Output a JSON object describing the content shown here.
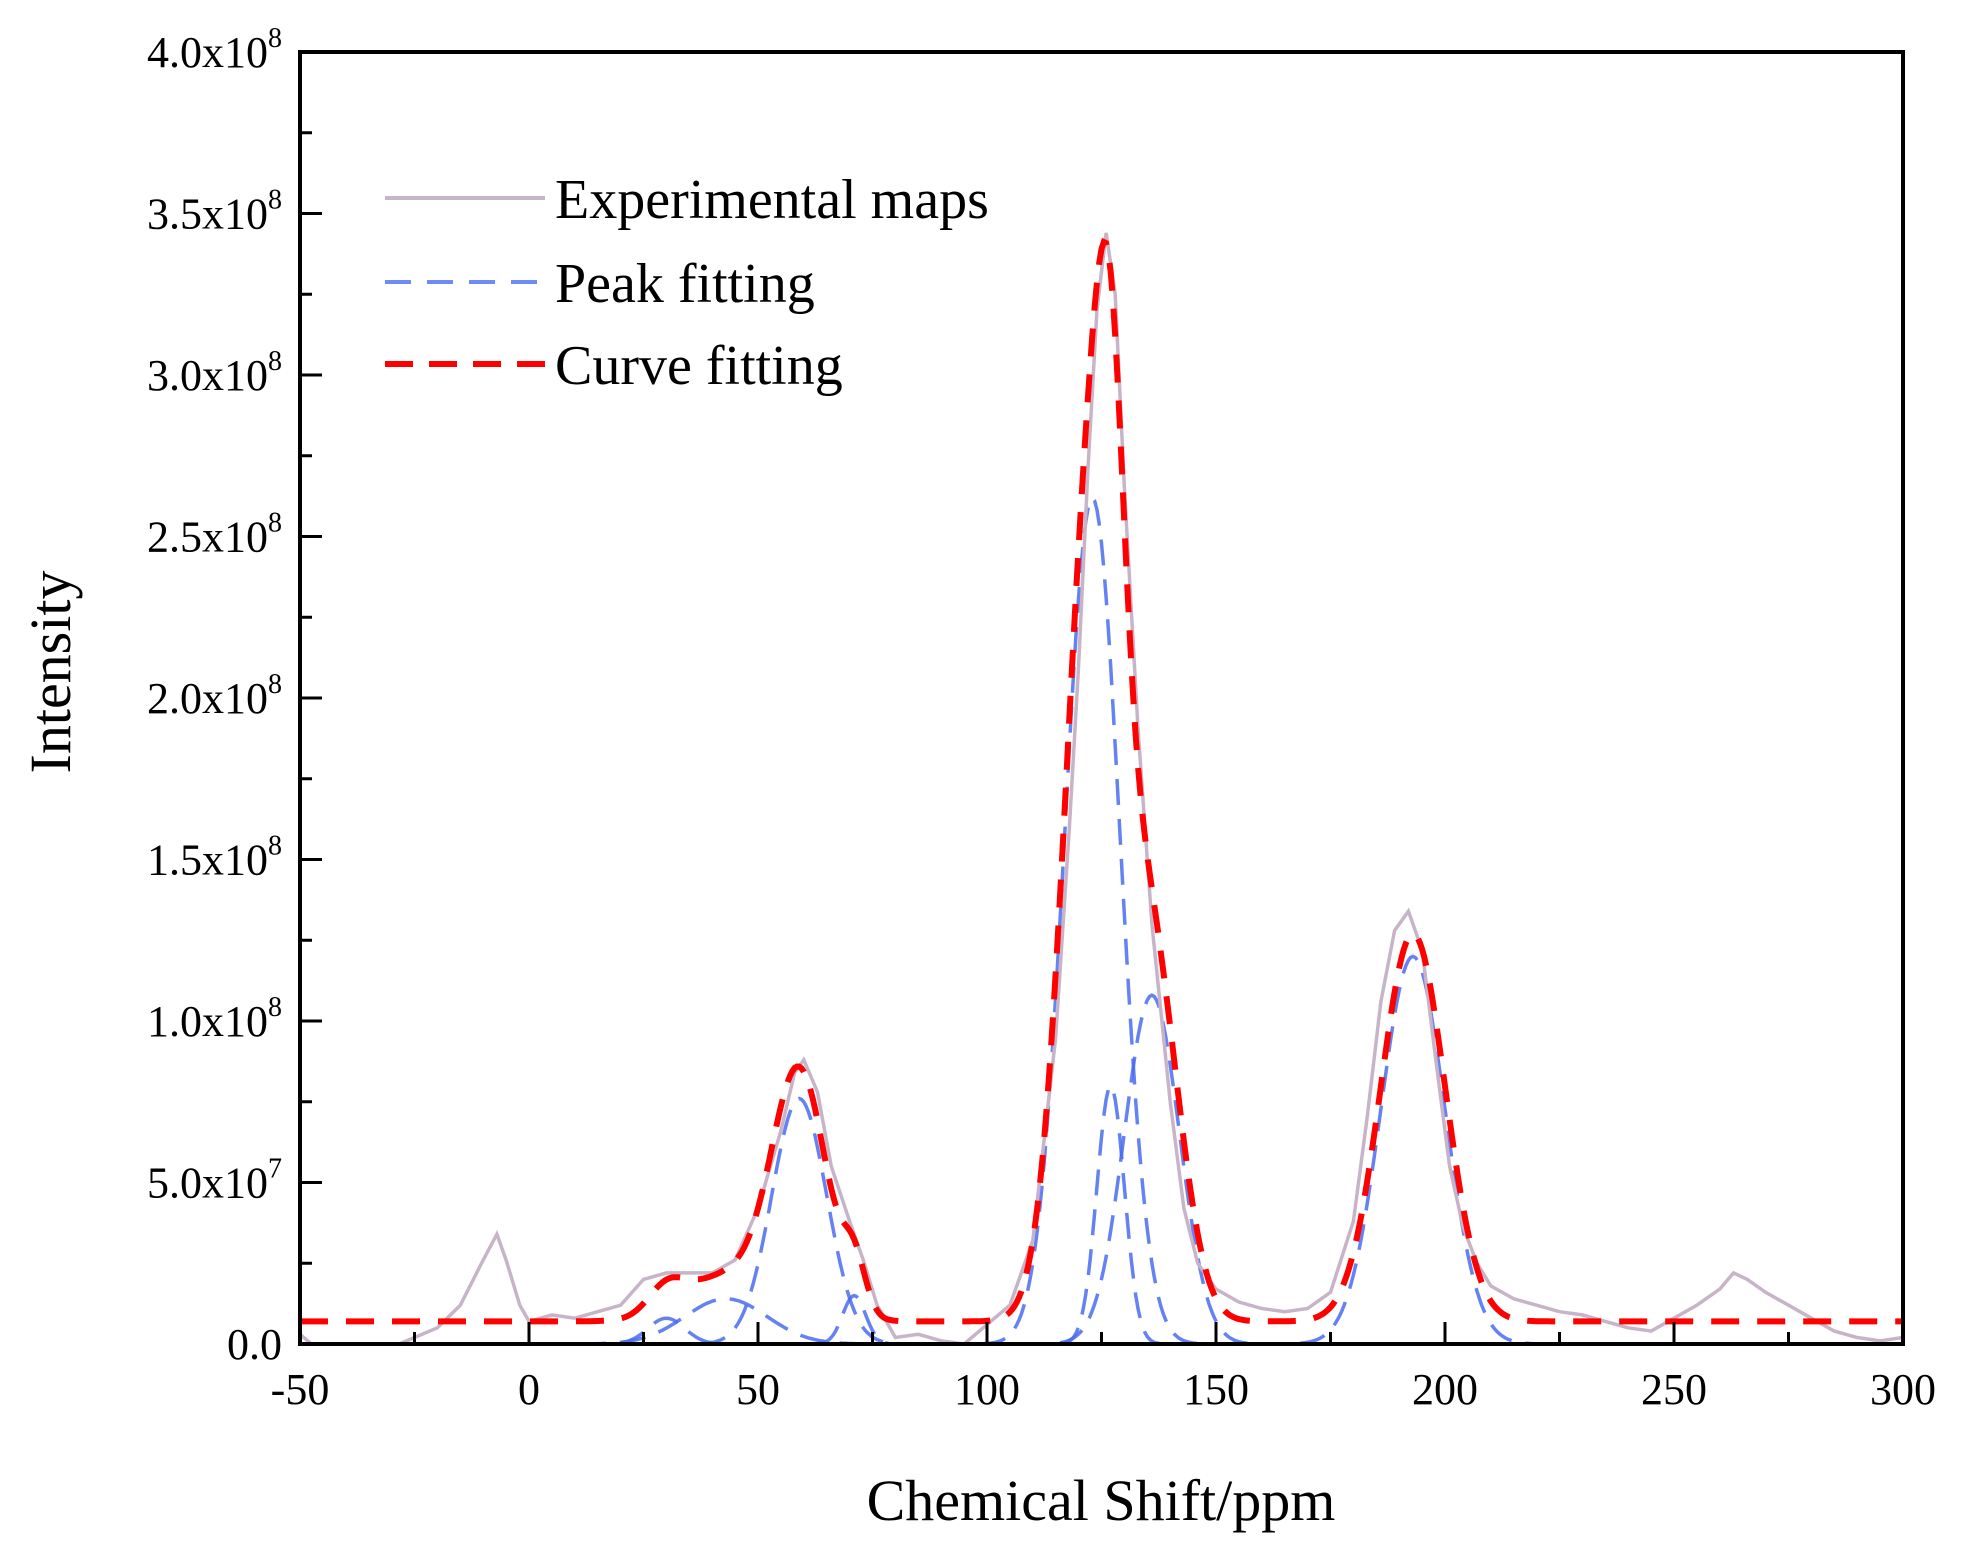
{
  "chart_data": {
    "type": "line",
    "xlabel": "Chemical Shift/ppm",
    "ylabel": "Intensity",
    "xlim": [
      -50,
      300
    ],
    "ylim": [
      0,
      400000000
    ],
    "x_ticks": [
      -50,
      0,
      50,
      100,
      150,
      200,
      250,
      300
    ],
    "x_tick_labels": [
      "-50",
      "0",
      "50",
      "100",
      "150",
      "200",
      "250",
      "300"
    ],
    "y_ticks": [
      0,
      50000000,
      100000000,
      150000000,
      200000000,
      250000000,
      300000000,
      350000000,
      400000000
    ],
    "y_tick_labels": [
      {
        "mant": "0.0",
        "exp": ""
      },
      {
        "mant": "5.0x10",
        "exp": "7"
      },
      {
        "mant": "1.0x10",
        "exp": "8"
      },
      {
        "mant": "1.5x10",
        "exp": "8"
      },
      {
        "mant": "2.0x10",
        "exp": "8"
      },
      {
        "mant": "2.5x10",
        "exp": "8"
      },
      {
        "mant": "3.0x10",
        "exp": "8"
      },
      {
        "mant": "3.5x10",
        "exp": "8"
      },
      {
        "mant": "4.0x10",
        "exp": "8"
      }
    ],
    "grid": false,
    "legend_position": "top-left",
    "series": [
      {
        "name": "Experimental maps",
        "style": "solid",
        "color": "#c8b4c8",
        "x": [
          -50,
          -45,
          -40,
          -35,
          -30,
          -25,
          -20,
          -15,
          -10,
          -7,
          -5,
          -2,
          0,
          5,
          10,
          15,
          20,
          25,
          30,
          35,
          40,
          45,
          50,
          55,
          58,
          60,
          63,
          66,
          70,
          73,
          76,
          80,
          85,
          90,
          95,
          100,
          105,
          110,
          115,
          118,
          120,
          122,
          124,
          126,
          128,
          130,
          133,
          136,
          140,
          143,
          146,
          150,
          155,
          160,
          165,
          170,
          175,
          180,
          183,
          186,
          189,
          192,
          195,
          198,
          201,
          204,
          207,
          210,
          215,
          220,
          225,
          230,
          235,
          240,
          245,
          250,
          255,
          260,
          263,
          266,
          270,
          275,
          280,
          285,
          290,
          295,
          300
        ],
        "y": [
          3000000,
          -3000000,
          -6000000,
          -5000000,
          -1000000,
          2000000,
          5000000,
          12000000,
          26000000,
          34000000,
          26000000,
          12000000,
          7000000,
          9000000,
          8000000,
          10000000,
          12000000,
          20000000,
          22000000,
          22000000,
          22000000,
          26000000,
          42000000,
          66000000,
          84000000,
          88000000,
          78000000,
          55000000,
          38000000,
          26000000,
          12000000,
          2000000,
          3000000,
          1000000,
          0,
          6000000,
          12000000,
          32000000,
          95000000,
          160000000,
          210000000,
          270000000,
          320000000,
          344000000,
          325000000,
          265000000,
          190000000,
          130000000,
          75000000,
          42000000,
          25000000,
          17000000,
          13000000,
          11000000,
          10000000,
          11000000,
          16000000,
          38000000,
          70000000,
          106000000,
          128000000,
          134000000,
          122000000,
          88000000,
          55000000,
          36000000,
          25000000,
          18000000,
          14000000,
          12000000,
          10000000,
          9000000,
          7000000,
          5000000,
          4000000,
          8000000,
          12000000,
          17000000,
          22000000,
          20000000,
          16000000,
          12000000,
          8000000,
          4000000,
          2000000,
          1000000,
          2000000
        ]
      },
      {
        "name": "Peak fitting",
        "style": "dashed",
        "color": "#4a6cf0",
        "peaks": [
          {
            "center": 30,
            "amplitude": 8000000,
            "sigma": 4
          },
          {
            "center": 43,
            "amplitude": 14000000,
            "sigma": 9
          },
          {
            "center": 59,
            "amplitude": 76000000,
            "sigma": 6
          },
          {
            "center": 71,
            "amplitude": 15000000,
            "sigma": 2.5
          },
          {
            "center": 123,
            "amplitude": 262000000,
            "sigma": 6
          },
          {
            "center": 127,
            "amplitude": 80000000,
            "sigma": 3
          },
          {
            "center": 136,
            "amplitude": 108000000,
            "sigma": 6
          },
          {
            "center": 193,
            "amplitude": 120000000,
            "sigma": 7
          }
        ]
      },
      {
        "name": "Curve fitting",
        "style": "dashed",
        "color": "#ff0000",
        "baseline": 7000000
      }
    ]
  }
}
